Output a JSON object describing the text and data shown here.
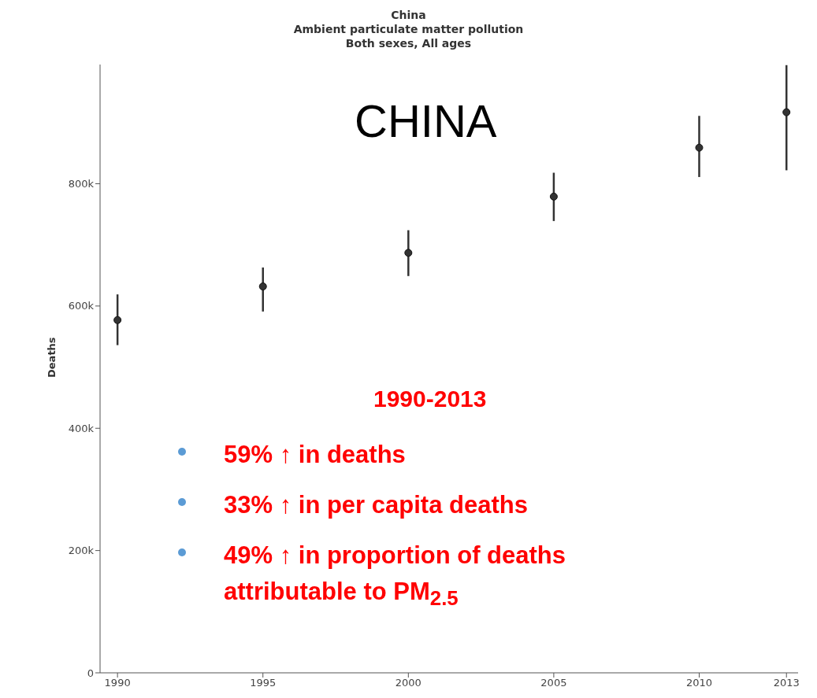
{
  "chart_data": {
    "type": "scatter",
    "title": "China",
    "subtitle": "Ambient particulate matter pollution\nBoth sexes, All ages",
    "ylabel": "Deaths",
    "x": [
      1990,
      1995,
      2000,
      2005,
      2010,
      2013
    ],
    "values": [
      577000,
      632000,
      687000,
      779000,
      859000,
      917000
    ],
    "errors": [
      [
        536000,
        619000
      ],
      [
        591000,
        663000
      ],
      [
        649000,
        724000
      ],
      [
        739000,
        818000
      ],
      [
        811000,
        911000
      ],
      [
        822000,
        994000
      ]
    ],
    "color": "#333333",
    "marker": "circle",
    "grid": false,
    "xlim": [
      1989.4,
      2013.4
    ],
    "xticks": [
      1990,
      1995,
      2000,
      2005,
      2010,
      2013
    ],
    "ylim": [
      0,
      995000
    ],
    "yticks": [
      {
        "value": 0,
        "label": "0"
      },
      {
        "value": 200000,
        "label": "200k"
      },
      {
        "value": 400000,
        "label": "400k"
      },
      {
        "value": 600000,
        "label": "600k"
      },
      {
        "value": 800000,
        "label": "800k"
      }
    ],
    "annotations": [
      "CHINA",
      "1990-2013",
      "59% ↑ in deaths",
      "33% ↑ in per capita deaths",
      "49% ↑ in proportion of deaths attributable to PM$_{2.5}$"
    ]
  }
}
